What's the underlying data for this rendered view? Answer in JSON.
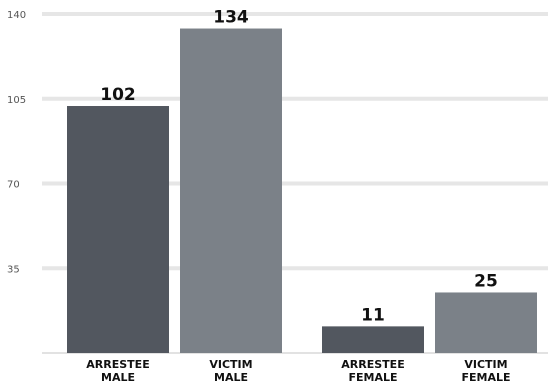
{
  "chart_data": {
    "type": "bar",
    "categories": [
      [
        "ARRESTEE",
        "MALE"
      ],
      [
        "VICTIM",
        "MALE"
      ],
      [
        "ARRESTEE",
        "FEMALE"
      ],
      [
        "VICTIM",
        "FEMALE"
      ]
    ],
    "values": [
      102,
      134,
      11,
      25
    ],
    "value_labels": [
      "102",
      "134",
      "11",
      "25"
    ],
    "bar_colors": [
      "#52575f",
      "#7b8188",
      "#52575f",
      "#7b8188"
    ],
    "ylim": [
      0,
      140
    ],
    "yticks": [
      35,
      70,
      105,
      140
    ],
    "ytick_labels": [
      "35",
      "70",
      "105",
      "140"
    ],
    "grid": true,
    "title": "",
    "xlabel": "",
    "ylabel": ""
  }
}
